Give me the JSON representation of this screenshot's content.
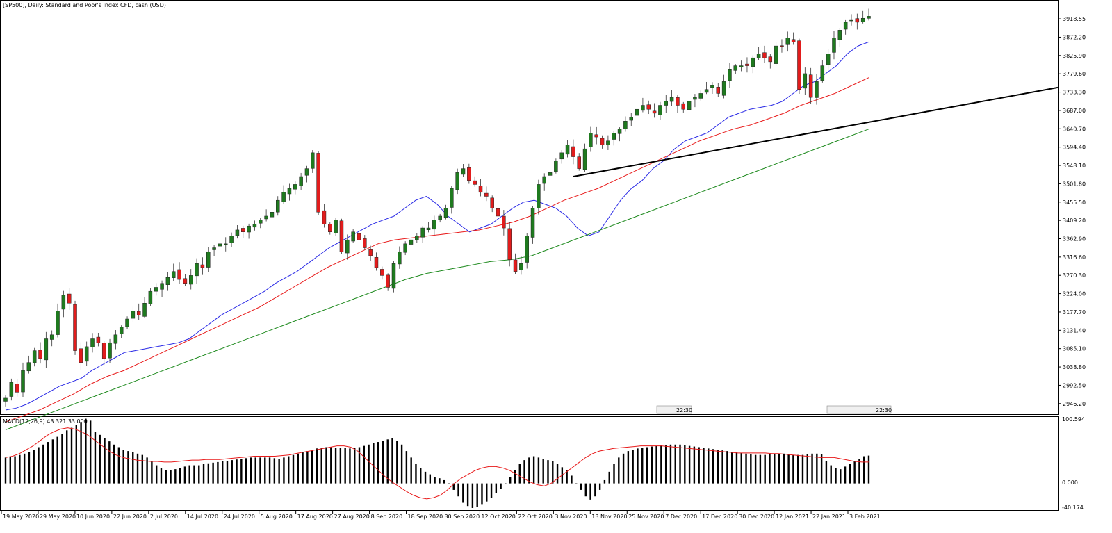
{
  "header": {
    "title": "[SP500], Daily:  Standard and Poor's Index CFD, cash (USD)"
  },
  "macd_panel": {
    "label": "MACD(12,26,9) 43.321 33.000",
    "tick_top": "100.594",
    "tick_zero": "0.000",
    "tick_bottom": "-40.174"
  },
  "session_markers": [
    "22:30",
    "22:30"
  ],
  "colors": {
    "bull": "#1f7a1f",
    "bear": "#e21c1c",
    "ma_blue": "#2a2ae6",
    "ma_red": "#e81a1a",
    "ma_green": "#1e8a1e",
    "trendline": "#000000",
    "macd_hist": "#000000",
    "macd_signal": "#e81a1a"
  },
  "chart_data": [
    {
      "type": "candlestick",
      "title": "[SP500], Daily:  Standard and Poor's Index CFD, cash (USD)",
      "ylim": [
        2923,
        3945
      ],
      "y_ticks": [
        "3918.55",
        "3872.20",
        "3825.90",
        "3779.60",
        "3733.30",
        "3687.00",
        "3640.70",
        "3594.40",
        "3548.10",
        "3501.80",
        "3455.50",
        "3409.20",
        "3362.90",
        "3316.60",
        "3270.30",
        "3224.00",
        "3177.70",
        "3131.40",
        "3085.10",
        "3038.80",
        "2992.50",
        "2946.20"
      ],
      "x_ticks": [
        "19 May 2020",
        "29 May 2020",
        "10 Jun 2020",
        "22 Jun 2020",
        "2 Jul 2020",
        "14 Jul 2020",
        "24 Jul 2020",
        "5 Aug 2020",
        "17 Aug 2020",
        "27 Aug 2020",
        "8 Sep 2020",
        "18 Sep 2020",
        "30 Sep 2020",
        "12 Oct 2020",
        "22 Oct 2020",
        "3 Nov 2020",
        "13 Nov 2020",
        "25 Nov 2020",
        "7 Dec 2020",
        "17 Dec 2020",
        "30 Dec 2020",
        "12 Jan 2021",
        "22 Jan 2021",
        "3 Feb 2021"
      ],
      "close_path": [
        2960,
        3000,
        2975,
        3030,
        3050,
        3080,
        3060,
        3110,
        3120,
        3180,
        3220,
        3200,
        3080,
        3050,
        3090,
        3110,
        3100,
        3060,
        3100,
        3120,
        3140,
        3160,
        3180,
        3170,
        3200,
        3230,
        3240,
        3250,
        3265,
        3280,
        3260,
        3250,
        3270,
        3300,
        3290,
        3330,
        3340,
        3350,
        3350,
        3370,
        3385,
        3380,
        3395,
        3400,
        3410,
        3420,
        3430,
        3460,
        3480,
        3490,
        3500,
        3520,
        3540,
        3580,
        3430,
        3400,
        3380,
        3410,
        3330,
        3360,
        3380,
        3360,
        3340,
        3320,
        3290,
        3270,
        3240,
        3300,
        3330,
        3350,
        3360,
        3370,
        3390,
        3390,
        3410,
        3420,
        3440,
        3490,
        3530,
        3540,
        3510,
        3500,
        3480,
        3470,
        3440,
        3420,
        3390,
        3310,
        3280,
        3300,
        3370,
        3440,
        3500,
        3520,
        3530,
        3560,
        3580,
        3600,
        3570,
        3540,
        3590,
        3630,
        3620,
        3600,
        3610,
        3630,
        3640,
        3660,
        3670,
        3690,
        3700,
        3690,
        3680,
        3700,
        3710,
        3720,
        3700,
        3690,
        3710,
        3720,
        3730,
        3740,
        3750,
        3730,
        3760,
        3790,
        3800,
        3800,
        3800,
        3820,
        3830,
        3820,
        3810,
        3850,
        3850,
        3870,
        3860,
        3740,
        3780,
        3720,
        3760,
        3800,
        3830,
        3870,
        3890,
        3910,
        3915,
        3910,
        3920,
        3925
      ],
      "series": [
        {
          "name": "",
          "values": [
            2930,
            2935,
            2945,
            2960,
            2975,
            2990,
            3000,
            3010,
            3030,
            3045,
            3060,
            3075,
            3080,
            3085,
            3090,
            3095,
            3100,
            3110,
            3130,
            3150,
            3170,
            3185,
            3200,
            3215,
            3230,
            3250,
            3265,
            3280,
            3300,
            3320,
            3340,
            3355,
            3370,
            3385,
            3400,
            3410,
            3420,
            3440,
            3460,
            3470,
            3450,
            3420,
            3400,
            3380,
            3390,
            3400,
            3420,
            3440,
            3455,
            3460,
            3450,
            3440,
            3420,
            3390,
            3370,
            3380,
            3420,
            3460,
            3490,
            3510,
            3540,
            3560,
            3590,
            3610,
            3620,
            3630,
            3650,
            3670,
            3680,
            3690,
            3695,
            3700,
            3710,
            3730,
            3750,
            3760,
            3780,
            3800,
            3830,
            3850,
            3860
          ]
        },
        {
          "name": "",
          "values": [
            2900,
            2915,
            2930,
            2950,
            2970,
            2995,
            3015,
            3030,
            3050,
            3070,
            3090,
            3110,
            3130,
            3150,
            3170,
            3190,
            3215,
            3240,
            3265,
            3290,
            3310,
            3330,
            3350,
            3360,
            3365,
            3370,
            3375,
            3380,
            3385,
            3395,
            3405,
            3420,
            3440,
            3460,
            3475,
            3490,
            3510,
            3530,
            3550,
            3570,
            3590,
            3610,
            3625,
            3640,
            3650,
            3665,
            3680,
            3700,
            3715,
            3730,
            3750,
            3770
          ]
        },
        {
          "name": "",
          "values": [
            2880,
            2900,
            2920,
            2940,
            2960,
            2980,
            3000,
            3020,
            3040,
            3060,
            3080,
            3100,
            3120,
            3140,
            3160,
            3180,
            3200,
            3220,
            3240,
            3260,
            3275,
            3285,
            3295,
            3305,
            3310,
            3320,
            3340,
            3360,
            3380,
            3400,
            3420,
            3440,
            3460,
            3480,
            3500,
            3520,
            3540,
            3560,
            3580,
            3600,
            3620,
            3640
          ]
        }
      ]
    },
    {
      "type": "bar",
      "title": "MACD(12,26,9) 43.321 33.000",
      "ylim": [
        -40.174,
        100.594
      ],
      "series": [
        {
          "name": "",
          "values": [
            40,
            41,
            42,
            44,
            46,
            48,
            52,
            56,
            60,
            64,
            68,
            72,
            76,
            82,
            86,
            90,
            95,
            100,
            97,
            80,
            75,
            70,
            65,
            60,
            56,
            52,
            50,
            48,
            46,
            44,
            40,
            34,
            28,
            24,
            20,
            20,
            22,
            24,
            26,
            28,
            28,
            28,
            30,
            31,
            32,
            33,
            34,
            35,
            36,
            37,
            38,
            39,
            40,
            40,
            40,
            40,
            40,
            39,
            38,
            40,
            42,
            44,
            46,
            48,
            50,
            52,
            54,
            55,
            56,
            56,
            55,
            55,
            55,
            54,
            55,
            56,
            58,
            60,
            62,
            64,
            66,
            68,
            70,
            66,
            60,
            50,
            40,
            30,
            24,
            18,
            14,
            10,
            8,
            5,
            0,
            -10,
            -20,
            -30,
            -35,
            -38,
            -36,
            -32,
            -28,
            -22,
            -15,
            -8,
            0,
            10,
            20,
            30,
            36,
            40,
            42,
            40,
            38,
            36,
            34,
            30,
            25,
            20,
            12,
            0,
            -10,
            -20,
            -25,
            -20,
            -10,
            5,
            18,
            30,
            40,
            46,
            50,
            52,
            54,
            55,
            56,
            57,
            58,
            59,
            59,
            60,
            60,
            60,
            59,
            58,
            57,
            56,
            55,
            54,
            53,
            52,
            51,
            50,
            49,
            48,
            47,
            46,
            45,
            44,
            44,
            44,
            45,
            46,
            46,
            46,
            45,
            44,
            44,
            44,
            45,
            46,
            46,
            45,
            35,
            28,
            24,
            22,
            26,
            30,
            34,
            38,
            42,
            43
          ]
        },
        {
          "name": "",
          "values": [
            40,
            42,
            46,
            52,
            58,
            66,
            74,
            80,
            84,
            86,
            84,
            80,
            74,
            66,
            58,
            50,
            44,
            40,
            38,
            36,
            35,
            34,
            34,
            33,
            33,
            34,
            35,
            36,
            36,
            37,
            37,
            37,
            38,
            39,
            40,
            41,
            42,
            42,
            42,
            42,
            43,
            44,
            46,
            48,
            50,
            52,
            54,
            56,
            58,
            58,
            56,
            50,
            40,
            30,
            20,
            10,
            2,
            -5,
            -12,
            -18,
            -22,
            -24,
            -22,
            -18,
            -10,
            0,
            8,
            14,
            20,
            24,
            26,
            26,
            24,
            20,
            14,
            8,
            2,
            -2,
            -4,
            0,
            8,
            16,
            24,
            32,
            40,
            46,
            50,
            52,
            54,
            55,
            56,
            57,
            58,
            58,
            58,
            58,
            57,
            56,
            55,
            54,
            53,
            52,
            51,
            50,
            49,
            48,
            47,
            47,
            47,
            47,
            47,
            46,
            46,
            45,
            44,
            43,
            42,
            41,
            40,
            40,
            40,
            38,
            36,
            34,
            33,
            33
          ]
        }
      ]
    }
  ]
}
